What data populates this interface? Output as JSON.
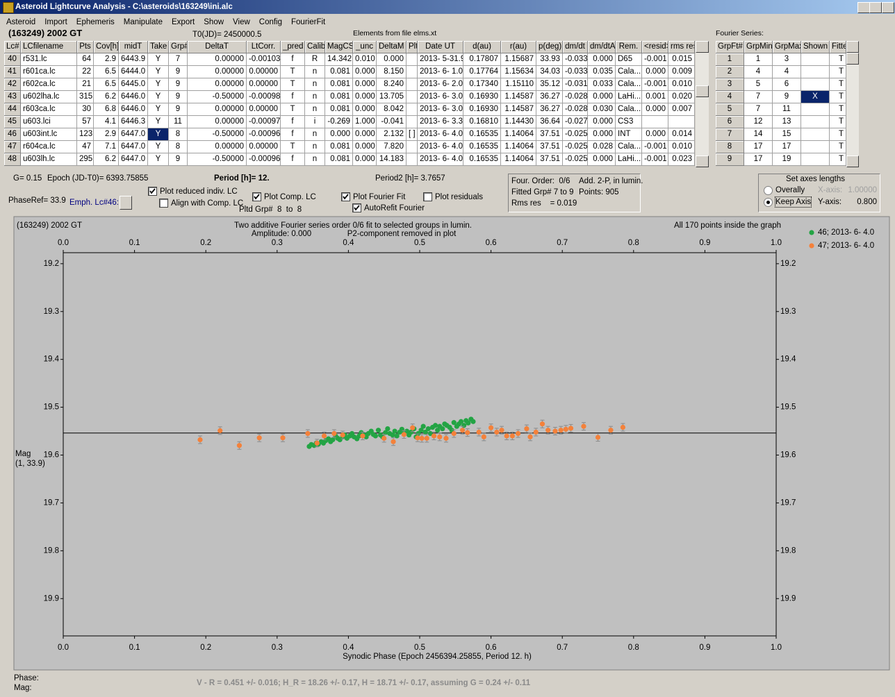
{
  "window": {
    "title": "Asteroid Lightcurve Analysis - C:\\asteroids\\163249\\ini.alc"
  },
  "menu": [
    "Asteroid",
    "Import",
    "Ephemeris",
    "Manipulate",
    "Export",
    "Show",
    "View",
    "Config",
    "FourierFit"
  ],
  "header": {
    "object": "(163249) 2002 GT",
    "t0": "T0(JD)= 2450000.5",
    "elements": "Elements from file elms.xt"
  },
  "lc_table": {
    "columns": [
      "Lc#",
      "LCfilename",
      "Pts",
      "Cov[h]",
      "midT",
      "Take",
      "Grp#",
      "DeltaT",
      "LtCorr.",
      "_pred",
      "Calib.",
      "MagCS",
      "_unc",
      "DeltaM",
      "Plt",
      "Date UT",
      "d(au)",
      "r(au)",
      "p(deg)",
      "dm/dt",
      "dm/dtA",
      "Rem.",
      "<resid>",
      "rms res"
    ],
    "rows": [
      [
        "40",
        "r531.lc",
        "64",
        "2.9",
        "6443.9",
        "Y",
        "7",
        "0.00000",
        "-0.00103",
        "f",
        "R",
        "14.342",
        "0.010",
        "0.000",
        null,
        "2013- 5-31.9",
        "0.17807",
        "1.15687",
        "33.93",
        "-0.033",
        "0.000",
        "D65",
        "-0.001",
        "0.015"
      ],
      [
        "41",
        "r601ca.lc",
        "22",
        "6.5",
        "6444.0",
        "Y",
        "9",
        "0.00000",
        "0.00000",
        "T",
        "n",
        "0.081",
        "0.000",
        "8.150",
        null,
        "2013- 6- 1.0",
        "0.17764",
        "1.15634",
        "34.03",
        "-0.033",
        "0.035",
        "Cala...",
        "0.000",
        "0.009"
      ],
      [
        "42",
        "r602ca.lc",
        "21",
        "6.5",
        "6445.0",
        "Y",
        "9",
        "0.00000",
        "0.00000",
        "T",
        "n",
        "0.081",
        "0.000",
        "8.240",
        null,
        "2013- 6- 2.0",
        "0.17340",
        "1.15110",
        "35.12",
        "-0.031",
        "0.033",
        "Cala...",
        "-0.001",
        "0.010"
      ],
      [
        "43",
        "u602lha.lc",
        "315",
        "6.2",
        "6446.0",
        "Y",
        "9",
        "-0.50000",
        "-0.00098",
        "f",
        "n",
        "0.081",
        "0.000",
        "13.705",
        null,
        "2013- 6- 3.0",
        "0.16930",
        "1.14587",
        "36.27",
        "-0.028",
        "0.000",
        "LaHi...",
        "0.001",
        "0.020"
      ],
      [
        "44",
        "r603ca.lc",
        "30",
        "6.8",
        "6446.0",
        "Y",
        "9",
        "0.00000",
        "0.00000",
        "T",
        "n",
        "0.081",
        "0.000",
        "8.042",
        null,
        "2013- 6- 3.0",
        "0.16930",
        "1.14587",
        "36.27",
        "-0.028",
        "0.030",
        "Cala...",
        "0.000",
        "0.007"
      ],
      [
        "45",
        "u603.lci",
        "57",
        "4.1",
        "6446.3",
        "Y",
        "11",
        "0.00000",
        "-0.00097",
        "f",
        "i",
        "-0.269",
        "1.000",
        "-0.041",
        null,
        "2013- 6- 3.3",
        "0.16810",
        "1.14430",
        "36.64",
        "-0.027",
        "0.000",
        "CS3",
        null,
        null
      ],
      [
        "46",
        "u603int.lc",
        "123",
        "2.9",
        "6447.0",
        "Y",
        "8",
        "-0.50000",
        "-0.00096",
        "f",
        "n",
        "0.000",
        "0.000",
        "2.132",
        "[ ]",
        "2013- 6- 4.0",
        "0.16535",
        "1.14064",
        "37.51",
        "-0.025",
        "0.000",
        "INT",
        "0.000",
        "0.014"
      ],
      [
        "47",
        "r604ca.lc",
        "47",
        "7.1",
        "6447.0",
        "Y",
        "8",
        "0.00000",
        "0.00000",
        "T",
        "n",
        "0.081",
        "0.000",
        "7.820",
        null,
        "2013- 6- 4.0",
        "0.16535",
        "1.14064",
        "37.51",
        "-0.025",
        "0.028",
        "Cala...",
        "-0.001",
        "0.010"
      ],
      [
        "48",
        "u603lh.lc",
        "295",
        "6.2",
        "6447.0",
        "Y",
        "9",
        "-0.50000",
        "-0.00096",
        "f",
        "n",
        "0.081",
        "0.000",
        "14.183",
        null,
        "2013- 6- 4.0",
        "0.16535",
        "1.14064",
        "37.51",
        "-0.025",
        "0.000",
        "LaHi...",
        "-0.001",
        "0.023"
      ]
    ],
    "selected": [
      6,
      5
    ]
  },
  "fourier": {
    "label": "Fourier Series:",
    "columns": [
      "GrpFt#",
      "GrpMin",
      "GrpMax",
      "Shown",
      "Fitte"
    ],
    "rows": [
      [
        "1",
        "1",
        "3",
        null,
        "T"
      ],
      [
        "2",
        "4",
        "4",
        null,
        "T"
      ],
      [
        "3",
        "5",
        "6",
        null,
        "T"
      ],
      [
        "4",
        "7",
        "9",
        "X",
        "T"
      ],
      [
        "5",
        "7",
        "11",
        null,
        "T"
      ],
      [
        "6",
        "12",
        "13",
        null,
        "T"
      ],
      [
        "7",
        "14",
        "15",
        null,
        "T"
      ],
      [
        "8",
        "17",
        "17",
        null,
        "T"
      ],
      [
        "9",
        "17",
        "19",
        null,
        "T"
      ]
    ],
    "selected": [
      3,
      3
    ]
  },
  "status": {
    "g": "G= 0.15",
    "epoch": "Epoch (JD-T0)= 6393.75855",
    "period": "Period [h]= 12.",
    "period2": "Period2 [h]= 3.7657",
    "phase_ref": "PhaseRef= 33.9",
    "emph": "Emph. Lc#46:",
    "pltd": "Pltd Grp#  8  to  8"
  },
  "checkboxes": [
    {
      "label": "Plot reduced indiv. LC",
      "checked": true
    },
    {
      "label": "Align with Comp. LC",
      "checked": false
    },
    {
      "label": "Plot Comp. LC",
      "checked": true
    },
    {
      "label": "Plot Fourier Fit",
      "checked": true
    },
    {
      "label": "AutoRefit Fourier",
      "checked": true
    },
    {
      "label": "Plot residuals",
      "checked": false
    }
  ],
  "fit_info": [
    "Four. Order:  0/6",
    "Add. 2-P, in lumin.",
    "Fitted Grp# 7 to 9",
    "Points: 905",
    "Rms res    = 0.019"
  ],
  "axes_box": {
    "title": "Set axes lengths",
    "options": [
      {
        "label": "Overally",
        "checked": false,
        "axis": "X-axis:",
        "value": "1.00000",
        "enabled": false
      },
      {
        "label": "Keep Axis",
        "checked": true,
        "axis": "Y-axis:",
        "value": "0.800",
        "enabled": true
      }
    ]
  },
  "chart_data": {
    "type": "scatter",
    "title": "(163249) 2002 GT",
    "annotations": [
      "Two additive Fourier series order 0/6 fit to selected groups in lumin.",
      "Amplitude: 0.000",
      "P2-component removed in plot",
      "All 170 points inside the graph"
    ],
    "y_label": "Mag",
    "y_label_sub": "(1, 33.9)",
    "x_label": "Synodic Phase (Epoch 2456394.25855, Period 12. h)",
    "xlim": [
      0,
      1
    ],
    "xticks": [
      {
        "value": 0,
        "label": "0.0"
      },
      0.1,
      0.2,
      0.3,
      0.4,
      0.5,
      0.6,
      0.7,
      0.8,
      0.9,
      {
        "value": 1,
        "label": "1.0"
      }
    ],
    "ylim": [
      19.978,
      19.177
    ],
    "yticks": [
      19.2,
      19.3,
      19.4,
      19.5,
      19.6,
      19.7,
      19.8,
      19.9
    ],
    "fit_line": 19.554,
    "legend": "outside right",
    "series": [
      {
        "name": "46; 2013- 6- 4.0",
        "color": "#23a444",
        "x": [
          0.345,
          0.348,
          0.352,
          0.355,
          0.358,
          0.362,
          0.365,
          0.368,
          0.372,
          0.375,
          0.378,
          0.382,
          0.385,
          0.388,
          0.392,
          0.395,
          0.398,
          0.402,
          0.405,
          0.408,
          0.412,
          0.415,
          0.418,
          0.422,
          0.425,
          0.428,
          0.432,
          0.435,
          0.438,
          0.442,
          0.445,
          0.448,
          0.452,
          0.455,
          0.458,
          0.462,
          0.465,
          0.468,
          0.472,
          0.475,
          0.478,
          0.482,
          0.485,
          0.488,
          0.492,
          0.495,
          0.498,
          0.502,
          0.505,
          0.508,
          0.512,
          0.515,
          0.518,
          0.522,
          0.525,
          0.528,
          0.532,
          0.535,
          0.538,
          0.542,
          0.545,
          0.548,
          0.552,
          0.555,
          0.558,
          0.562,
          0.565,
          0.568,
          0.572,
          0.575
        ],
        "values": [
          19.582,
          19.578,
          19.58,
          19.575,
          19.577,
          19.572,
          19.575,
          19.57,
          19.566,
          19.572,
          19.568,
          19.56,
          19.565,
          19.568,
          19.562,
          19.558,
          19.565,
          19.56,
          19.555,
          19.562,
          19.566,
          19.56,
          19.553,
          19.558,
          19.562,
          19.555,
          19.55,
          19.557,
          19.56,
          19.548,
          19.558,
          19.562,
          19.553,
          19.545,
          19.555,
          19.558,
          19.55,
          19.56,
          19.552,
          19.546,
          19.555,
          19.55,
          19.558,
          19.552,
          19.545,
          19.562,
          19.555,
          19.548,
          19.54,
          19.552,
          19.545,
          19.555,
          19.542,
          19.538,
          19.548,
          19.54,
          19.545,
          19.535,
          19.538,
          19.542,
          19.548,
          19.532,
          19.54,
          19.535,
          19.53,
          19.538,
          19.528,
          19.533,
          19.525,
          19.53
        ]
      },
      {
        "name": "47; 2013- 6- 4.0",
        "color": "#f4813a",
        "error": 0.008,
        "x": [
          0.192,
          0.22,
          0.247,
          0.275,
          0.308,
          0.343,
          0.356,
          0.366,
          0.38,
          0.392,
          0.42,
          0.45,
          0.463,
          0.478,
          0.49,
          0.497,
          0.503,
          0.51,
          0.52,
          0.528,
          0.537,
          0.548,
          0.56,
          0.567,
          0.583,
          0.59,
          0.6,
          0.608,
          0.615,
          0.622,
          0.63,
          0.638,
          0.65,
          0.655,
          0.663,
          0.672,
          0.68,
          0.69,
          0.698,
          0.705,
          0.712,
          0.73,
          0.75,
          0.768,
          0.785
        ],
        "values": [
          19.568,
          19.549,
          19.58,
          19.564,
          19.564,
          19.555,
          19.575,
          19.56,
          19.555,
          19.558,
          19.56,
          19.565,
          19.572,
          19.557,
          19.543,
          19.564,
          19.565,
          19.565,
          19.56,
          19.562,
          19.565,
          19.555,
          19.548,
          19.553,
          19.552,
          19.562,
          19.543,
          19.552,
          19.548,
          19.56,
          19.56,
          19.555,
          19.545,
          19.562,
          19.552,
          19.535,
          19.548,
          19.55,
          19.548,
          19.546,
          19.544,
          19.54,
          19.563,
          19.548,
          19.542
        ]
      }
    ]
  },
  "footer": {
    "phase": "Phase:",
    "mag": "Mag:",
    "color_info": "V - R = 0.451 +/- 0.016; H_R = 18.26 +/- 0.17, H = 18.71 +/- 0.17, assuming G = 0.24 +/- 0.11"
  }
}
